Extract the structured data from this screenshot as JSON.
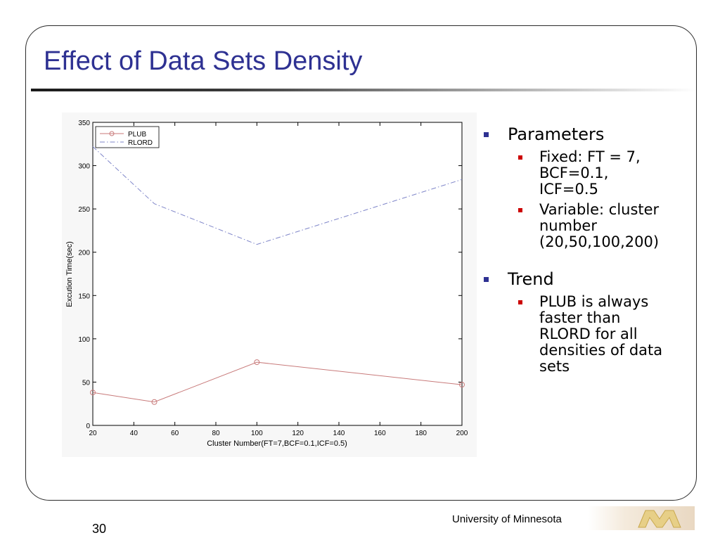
{
  "slide": {
    "title": "Effect of Data Sets Density",
    "page_number": "30",
    "footer": "University of Minnesota"
  },
  "bullets": [
    {
      "heading": "Parameters",
      "items": [
        [
          "Fixed: FT = 7,",
          "BCF=0.1,",
          "ICF=0.5"
        ],
        [
          "Variable: cluster",
          "number",
          "(20,50,100,200)"
        ]
      ]
    },
    {
      "heading": "Trend",
      "items": [
        [
          "PLUB is always",
          "faster than",
          "RLORD for all",
          "densities of data",
          "sets"
        ]
      ]
    }
  ],
  "colors": {
    "title": "#2e3192",
    "level1_bullet": "#2e3192",
    "level2_bullet": "#cc0000",
    "plub": "#c87a7a",
    "rlord": "#7f86c9"
  },
  "chart_data": {
    "type": "line",
    "xlabel": "Cluster Number(FT=7,BCF=0.1,ICF=0.5)",
    "ylabel": "Excution Time(sec)",
    "xlim": [
      20,
      200
    ],
    "ylim": [
      0,
      350
    ],
    "xticks": [
      20,
      40,
      60,
      80,
      100,
      120,
      140,
      160,
      180,
      200
    ],
    "yticks": [
      0,
      50,
      100,
      150,
      200,
      250,
      300,
      350
    ],
    "legend_position": "top-left",
    "grid": false,
    "series": [
      {
        "name": "PLUB",
        "style": "solid-circle-markers",
        "x": [
          20,
          50,
          100,
          200
        ],
        "y": [
          38,
          27,
          73,
          47
        ]
      },
      {
        "name": "RLORD",
        "style": "dash-dot",
        "x": [
          20,
          50,
          100,
          200
        ],
        "y": [
          322,
          256,
          209,
          284
        ]
      }
    ]
  }
}
